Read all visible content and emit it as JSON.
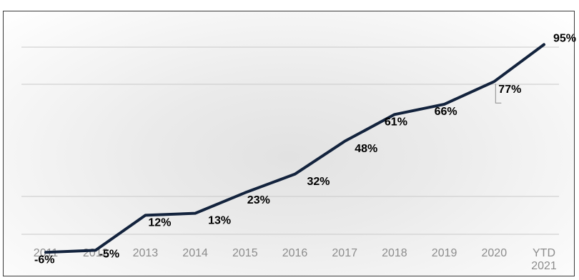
{
  "chart_data": {
    "type": "line",
    "title": "",
    "xlabel": "",
    "ylabel": "",
    "categories": [
      "2011",
      "2012",
      "2013",
      "2014",
      "2015",
      "2016",
      "2017",
      "2018",
      "2019",
      "2020",
      "YTD 2021"
    ],
    "series": [
      {
        "values": [
          -6,
          -5,
          12,
          13,
          23,
          32,
          48,
          61,
          66,
          77,
          95
        ],
        "data_labels": [
          "-6%",
          "-5%",
          "12%",
          "13%",
          "23%",
          "32%",
          "48%",
          "61%",
          "66%",
          "77%",
          "95%"
        ],
        "color": "#13233d"
      }
    ],
    "ylim": [
      -10,
      110
    ],
    "grid": true,
    "legend": "none",
    "y_axis_labels_shown": false
  }
}
